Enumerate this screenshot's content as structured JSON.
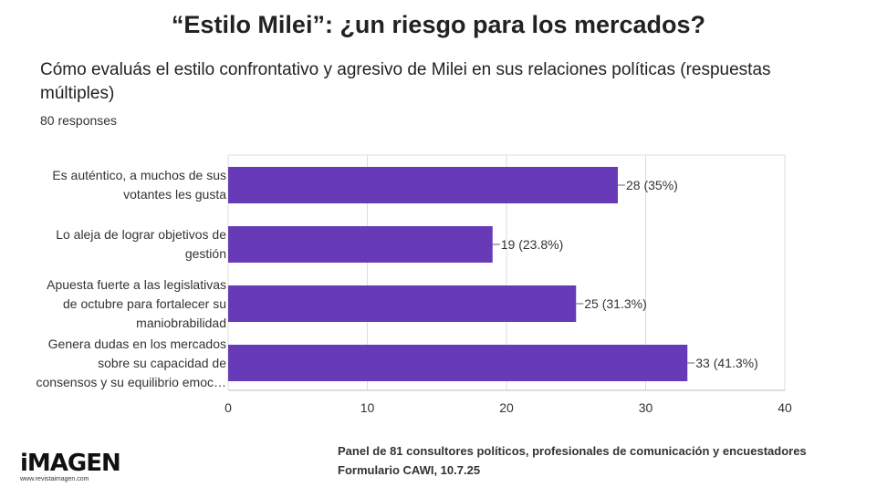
{
  "header": {
    "title": "“Estilo Milei”: ¿un riesgo para los mercados?",
    "question": "Cómo evaluás el estilo confrontativo y agresivo de Milei en sus relaciones políticas (respuestas múltiples)",
    "responses": "80 responses"
  },
  "colors": {
    "bar": "#673ab7",
    "grid": "#dddddd",
    "text": "#333333"
  },
  "chart_data": {
    "type": "bar",
    "orientation": "horizontal",
    "categories": [
      [
        "Es auténtico, a muchos de sus",
        "votantes les gusta"
      ],
      [
        "Lo aleja de lograr objetivos de",
        "gestión"
      ],
      [
        "Apuesta fuerte a las legislativas",
        "de octubre para fortalecer su",
        "maniobrabilidad"
      ],
      [
        "Genera dudas en los mercados",
        "sobre su capacidad de",
        "consensos y su equilibrio emoc…"
      ]
    ],
    "values": [
      28,
      19,
      25,
      33
    ],
    "value_labels": [
      "28 (35%)",
      "19 (23.8%)",
      "25 (31.3%)",
      "33 (41.3%)"
    ],
    "xlim": [
      0,
      40
    ],
    "xticks": [
      "0",
      "10",
      "20",
      "30",
      "40"
    ],
    "xlabel": "",
    "ylabel": ""
  },
  "footer": {
    "logo": "iMAGEN",
    "site": "www.revistaimagen.com",
    "panel": "Panel de 81 consultores políticos, profesionales de comunicación y encuestadores",
    "form": "Formulario CAWI, 10.7.25"
  }
}
